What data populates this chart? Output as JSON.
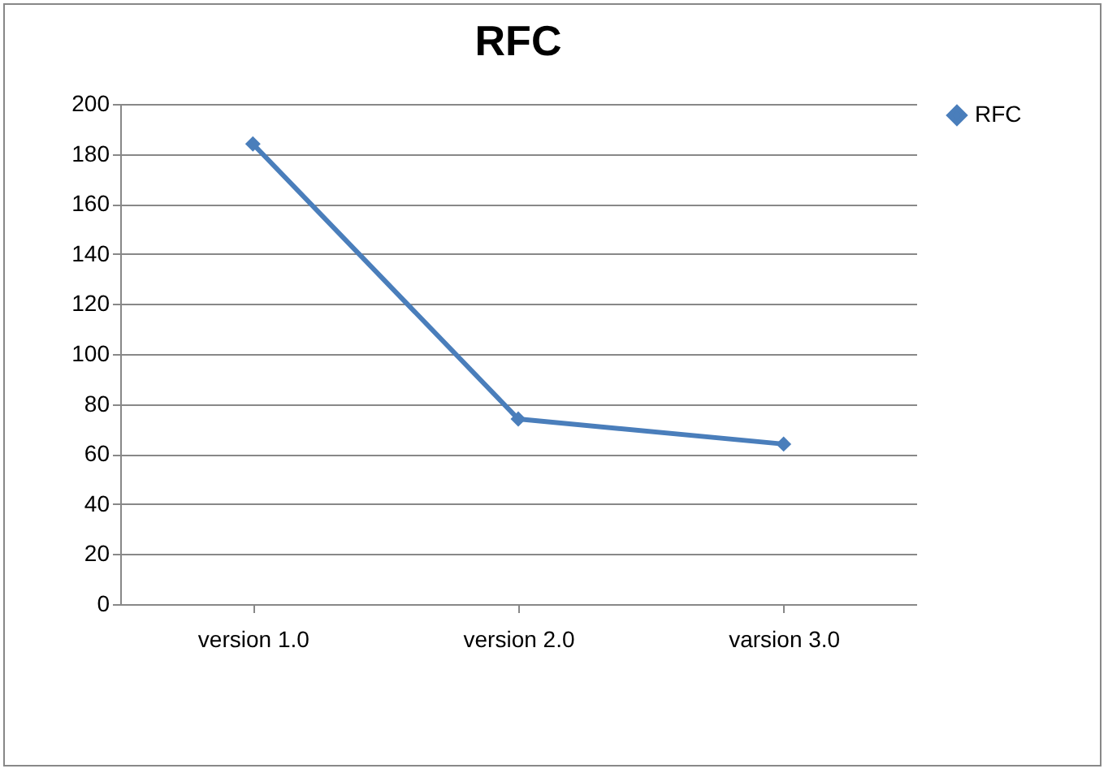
{
  "chart_data": {
    "type": "line",
    "title": "RFC",
    "categories": [
      "version 1.0",
      "version 2.0",
      "varsion 3.0"
    ],
    "series": [
      {
        "name": "RFC",
        "color": "#4a7ebb",
        "values": [
          184,
          74,
          64
        ]
      }
    ],
    "ylim": [
      0,
      200
    ],
    "yticks": [
      0,
      20,
      40,
      60,
      80,
      100,
      120,
      140,
      160,
      180,
      200
    ],
    "grid": "y",
    "legend": "right",
    "marker": "diamond",
    "line_style": "solid"
  }
}
